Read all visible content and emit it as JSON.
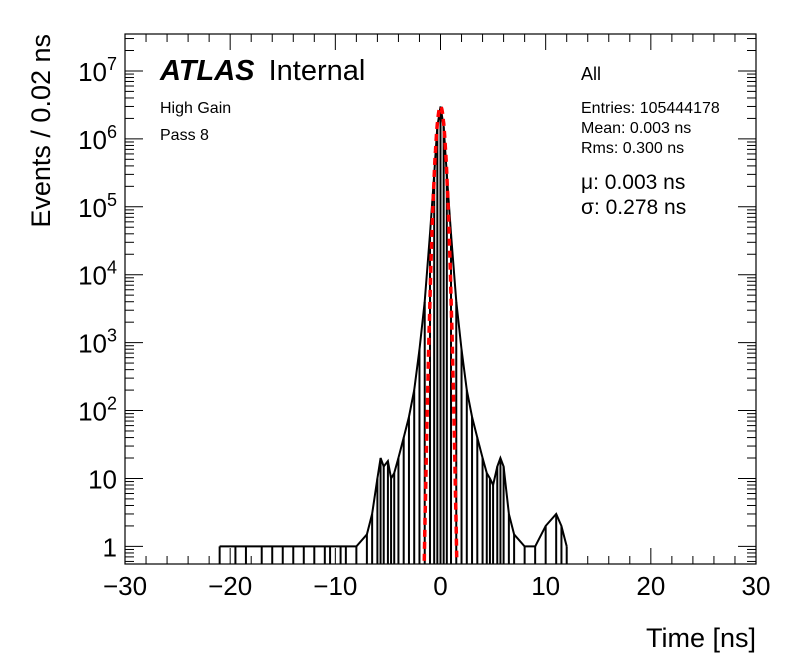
{
  "chart_data": {
    "type": "line",
    "scale": {
      "y": "log"
    },
    "xlabel": "Time [ns]",
    "ylabel": "Events / 0.02 ns",
    "xlim": [
      -30,
      30
    ],
    "ylim": [
      0.55,
      35000000
    ],
    "x_ticks": [
      -30,
      -20,
      -10,
      0,
      10,
      20,
      30
    ],
    "x_tick_labels": [
      "−30",
      "−20",
      "−10",
      "0",
      "10",
      "20",
      "30"
    ],
    "y_ticks": [
      1,
      10,
      100,
      1000,
      10000,
      100000,
      1000000,
      10000000
    ],
    "y_tick_labels": [
      "1",
      "10",
      "10^2",
      "10^3",
      "10^4",
      "10^5",
      "10^6",
      "10^7"
    ],
    "labels": {
      "brand": "ATLAS",
      "status": "Internal",
      "gain": "High Gain",
      "pass": "Pass 8",
      "selection": "All",
      "entries": "Entries: 105444178",
      "mean": "Mean: 0.003 ns",
      "rms": "Rms: 0.300 ns",
      "mu": "μ: 0.003 ns",
      "sigma": "σ: 0.278 ns"
    },
    "series": [
      {
        "color": "#000000",
        "style": "histogram",
        "x": [
          -21.0,
          -19.5,
          -18.5,
          -17.0,
          -16.0,
          -15.0,
          -14.0,
          -13.0,
          -12.0,
          -11.0,
          -10.5,
          -9.5,
          -9.0,
          -8.0,
          -7.0,
          -6.5,
          -6.0,
          -5.7,
          -5.4,
          -5.0,
          -4.7,
          -4.4,
          -4.0,
          -3.5,
          -3.0,
          -2.5,
          -2.0,
          -1.5,
          -1.0,
          -0.6,
          -0.3,
          0.0,
          0.3,
          0.6,
          1.0,
          1.5,
          2.0,
          2.5,
          3.0,
          3.5,
          4.0,
          4.4,
          4.7,
          5.0,
          5.4,
          5.7,
          6.0,
          6.5,
          7.0,
          8.0,
          9.0,
          10.0,
          11.0,
          11.5,
          12.0
        ],
        "y": [
          1,
          1,
          1,
          1,
          1,
          1,
          1,
          1,
          1,
          1,
          1,
          1,
          1,
          1,
          1.5,
          3,
          10,
          20,
          15,
          18,
          10,
          12,
          20,
          40,
          80,
          200,
          800,
          4000,
          40000,
          300000,
          1500000,
          3000000,
          1500000,
          300000,
          40000,
          4000,
          800,
          200,
          80,
          40,
          20,
          12,
          10,
          8,
          15,
          20,
          15,
          3,
          1.5,
          1,
          1,
          2,
          3,
          2,
          1
        ]
      },
      {
        "color": "#ff0000",
        "style": "dashed-fit",
        "fit": "gaussian",
        "mu": 0.003,
        "sigma": 0.278,
        "amplitude": 3000000
      }
    ]
  }
}
